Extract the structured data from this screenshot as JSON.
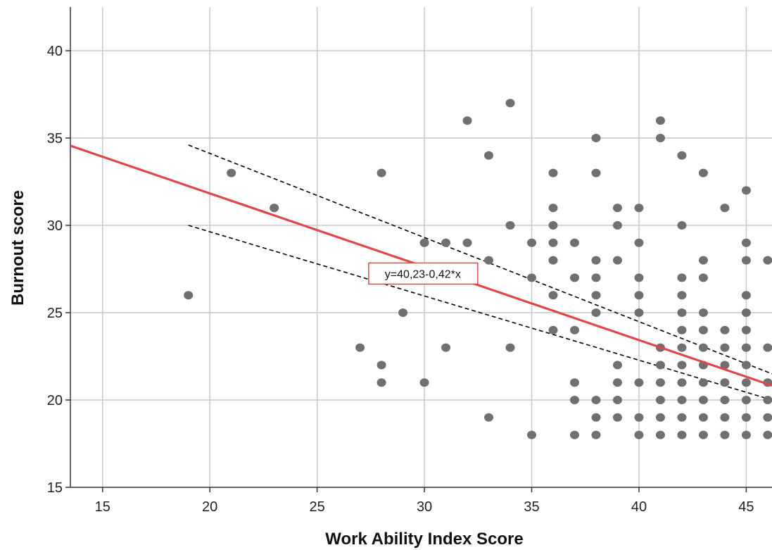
{
  "chart_data": {
    "type": "scatter",
    "title": "",
    "xlabel": "Work Ability Index Score",
    "ylabel": "Burnout score",
    "xlim": [
      13.5,
      46.2
    ],
    "ylim": [
      15,
      42.5
    ],
    "xticks": [
      15,
      20,
      25,
      30,
      35,
      40,
      45
    ],
    "yticks": [
      15,
      20,
      25,
      30,
      35,
      40
    ],
    "grid": true,
    "colors": {
      "points": "#707070",
      "fit_line": "#e0474c",
      "ci_lines": "#000000",
      "grid": "#c8c8c8"
    },
    "fit": {
      "equation_label": "y=40,23-0,42*x",
      "intercept": 40.23,
      "slope": -0.42,
      "x_range": [
        13.5,
        46.2
      ]
    },
    "confidence_band": {
      "x_range": [
        19,
        46.2
      ],
      "upper": [
        [
          19,
          34.6
        ],
        [
          46.2,
          21.5
        ]
      ],
      "lower": [
        [
          19,
          30.0
        ],
        [
          46.2,
          20.0
        ]
      ]
    },
    "points": [
      {
        "x": 19,
        "y": 26
      },
      {
        "x": 21,
        "y": 33
      },
      {
        "x": 23,
        "y": 31
      },
      {
        "x": 27,
        "y": 23
      },
      {
        "x": 28,
        "y": 33
      },
      {
        "x": 28,
        "y": 22
      },
      {
        "x": 28,
        "y": 21
      },
      {
        "x": 29,
        "y": 27
      },
      {
        "x": 29,
        "y": 25
      },
      {
        "x": 30,
        "y": 29
      },
      {
        "x": 30,
        "y": 21
      },
      {
        "x": 31,
        "y": 29
      },
      {
        "x": 31,
        "y": 23
      },
      {
        "x": 32,
        "y": 36
      },
      {
        "x": 32,
        "y": 29
      },
      {
        "x": 32,
        "y": 27
      },
      {
        "x": 33,
        "y": 34
      },
      {
        "x": 33,
        "y": 28
      },
      {
        "x": 33,
        "y": 19
      },
      {
        "x": 34,
        "y": 37
      },
      {
        "x": 34,
        "y": 30
      },
      {
        "x": 34,
        "y": 23
      },
      {
        "x": 35,
        "y": 29
      },
      {
        "x": 35,
        "y": 27
      },
      {
        "x": 35,
        "y": 18
      },
      {
        "x": 36,
        "y": 33
      },
      {
        "x": 36,
        "y": 31
      },
      {
        "x": 36,
        "y": 30
      },
      {
        "x": 36,
        "y": 29
      },
      {
        "x": 36,
        "y": 28
      },
      {
        "x": 36,
        "y": 26
      },
      {
        "x": 36,
        "y": 24
      },
      {
        "x": 37,
        "y": 29
      },
      {
        "x": 37,
        "y": 27
      },
      {
        "x": 37,
        "y": 24
      },
      {
        "x": 37,
        "y": 21
      },
      {
        "x": 37,
        "y": 20
      },
      {
        "x": 37,
        "y": 18
      },
      {
        "x": 38,
        "y": 35
      },
      {
        "x": 38,
        "y": 33
      },
      {
        "x": 38,
        "y": 28
      },
      {
        "x": 38,
        "y": 27
      },
      {
        "x": 38,
        "y": 26
      },
      {
        "x": 38,
        "y": 25
      },
      {
        "x": 38,
        "y": 20
      },
      {
        "x": 38,
        "y": 19
      },
      {
        "x": 38,
        "y": 18
      },
      {
        "x": 39,
        "y": 31
      },
      {
        "x": 39,
        "y": 30
      },
      {
        "x": 39,
        "y": 28
      },
      {
        "x": 39,
        "y": 22
      },
      {
        "x": 39,
        "y": 21
      },
      {
        "x": 39,
        "y": 20
      },
      {
        "x": 39,
        "y": 19
      },
      {
        "x": 40,
        "y": 31
      },
      {
        "x": 40,
        "y": 29
      },
      {
        "x": 40,
        "y": 27
      },
      {
        "x": 40,
        "y": 26
      },
      {
        "x": 40,
        "y": 25
      },
      {
        "x": 40,
        "y": 21
      },
      {
        "x": 40,
        "y": 19
      },
      {
        "x": 40,
        "y": 18
      },
      {
        "x": 41,
        "y": 36
      },
      {
        "x": 41,
        "y": 35
      },
      {
        "x": 41,
        "y": 23
      },
      {
        "x": 41,
        "y": 22
      },
      {
        "x": 41,
        "y": 21
      },
      {
        "x": 41,
        "y": 20
      },
      {
        "x": 41,
        "y": 19
      },
      {
        "x": 41,
        "y": 18
      },
      {
        "x": 42,
        "y": 34
      },
      {
        "x": 42,
        "y": 30
      },
      {
        "x": 42,
        "y": 27
      },
      {
        "x": 42,
        "y": 26
      },
      {
        "x": 42,
        "y": 25
      },
      {
        "x": 42,
        "y": 24
      },
      {
        "x": 42,
        "y": 23
      },
      {
        "x": 42,
        "y": 22
      },
      {
        "x": 42,
        "y": 21
      },
      {
        "x": 42,
        "y": 20
      },
      {
        "x": 42,
        "y": 19
      },
      {
        "x": 42,
        "y": 18
      },
      {
        "x": 43,
        "y": 33
      },
      {
        "x": 43,
        "y": 28
      },
      {
        "x": 43,
        "y": 27
      },
      {
        "x": 43,
        "y": 25
      },
      {
        "x": 43,
        "y": 24
      },
      {
        "x": 43,
        "y": 23
      },
      {
        "x": 43,
        "y": 22
      },
      {
        "x": 43,
        "y": 21
      },
      {
        "x": 43,
        "y": 20
      },
      {
        "x": 43,
        "y": 19
      },
      {
        "x": 43,
        "y": 18
      },
      {
        "x": 44,
        "y": 31
      },
      {
        "x": 44,
        "y": 24
      },
      {
        "x": 44,
        "y": 23
      },
      {
        "x": 44,
        "y": 22
      },
      {
        "x": 44,
        "y": 21
      },
      {
        "x": 44,
        "y": 20
      },
      {
        "x": 44,
        "y": 19
      },
      {
        "x": 44,
        "y": 18
      },
      {
        "x": 45,
        "y": 32
      },
      {
        "x": 45,
        "y": 29
      },
      {
        "x": 45,
        "y": 28
      },
      {
        "x": 45,
        "y": 26
      },
      {
        "x": 45,
        "y": 25
      },
      {
        "x": 45,
        "y": 24
      },
      {
        "x": 45,
        "y": 23
      },
      {
        "x": 45,
        "y": 22
      },
      {
        "x": 45,
        "y": 21
      },
      {
        "x": 45,
        "y": 20
      },
      {
        "x": 45,
        "y": 19
      },
      {
        "x": 45,
        "y": 18
      },
      {
        "x": 46,
        "y": 28
      },
      {
        "x": 46,
        "y": 23
      },
      {
        "x": 46,
        "y": 21
      },
      {
        "x": 46,
        "y": 20
      },
      {
        "x": 46,
        "y": 19
      },
      {
        "x": 46,
        "y": 18
      }
    ]
  }
}
